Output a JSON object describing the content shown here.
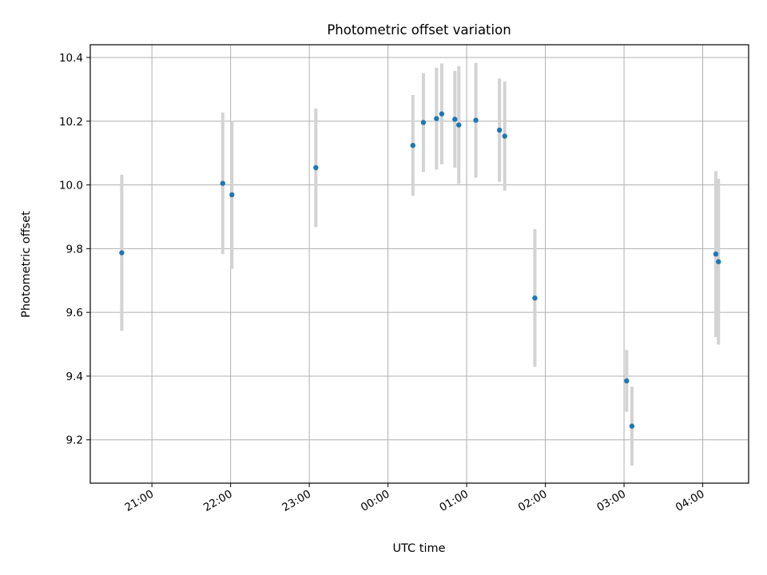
{
  "chart_data": {
    "type": "scatter",
    "title": "Photometric offset variation",
    "xlabel": "UTC time",
    "ylabel": "Photometric offset",
    "x_tick_labels": [
      "21:00",
      "22:00",
      "23:00",
      "00:00",
      "01:00",
      "02:00",
      "03:00",
      "04:00"
    ],
    "y_tick_labels": [
      "9.2",
      "9.4",
      "9.6",
      "9.8",
      "10.0",
      "10.2",
      "10.4"
    ],
    "grid": true,
    "xlim": [
      "20:13",
      "04:35"
    ],
    "ylim": [
      9.064,
      10.44
    ],
    "colors": {
      "points": "#1f77b4",
      "errorbars": "#d3d3d3",
      "grid": "#b0b0b0"
    },
    "points": [
      {
        "x": "20:37",
        "y": 9.787,
        "err": 0.245
      },
      {
        "x": "21:54",
        "y": 10.005,
        "err": 0.222
      },
      {
        "x": "22:01",
        "y": 9.969,
        "err": 0.232
      },
      {
        "x": "23:05",
        "y": 10.054,
        "err": 0.186
      },
      {
        "x": "00:19",
        "y": 10.124,
        "err": 0.158
      },
      {
        "x": "00:27",
        "y": 10.196,
        "err": 0.155
      },
      {
        "x": "00:37",
        "y": 10.208,
        "err": 0.16
      },
      {
        "x": "00:41",
        "y": 10.223,
        "err": 0.158
      },
      {
        "x": "00:51",
        "y": 10.206,
        "err": 0.152
      },
      {
        "x": "00:54",
        "y": 10.188,
        "err": 0.185
      },
      {
        "x": "01:07",
        "y": 10.203,
        "err": 0.18
      },
      {
        "x": "01:25",
        "y": 10.172,
        "err": 0.162
      },
      {
        "x": "01:29",
        "y": 10.153,
        "err": 0.171
      },
      {
        "x": "01:52",
        "y": 9.645,
        "err": 0.216
      },
      {
        "x": "03:02",
        "y": 9.385,
        "err": 0.097
      },
      {
        "x": "03:06",
        "y": 9.243,
        "err": 0.124
      },
      {
        "x": "04:10",
        "y": 9.783,
        "err": 0.26
      },
      {
        "x": "04:12",
        "y": 9.759,
        "err": 0.26
      }
    ]
  }
}
